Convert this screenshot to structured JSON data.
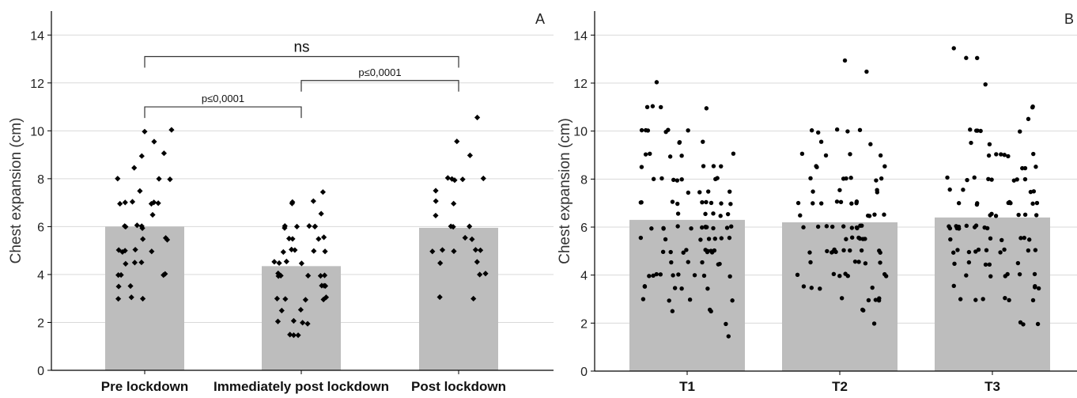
{
  "chart_data": [
    {
      "panel": "A",
      "type": "bar",
      "overlay": "scatter",
      "categories": [
        "Pre lockdown",
        "Immediately post lockdown",
        "Post lockdown"
      ],
      "values": [
        6.0,
        4.35,
        5.95
      ],
      "ylabel": "Chest expansion (cm)",
      "ylim": [
        0,
        15
      ],
      "yticks": [
        0,
        2,
        4,
        6,
        8,
        10,
        12,
        14
      ],
      "grid": "horizontal",
      "colors": {
        "bar": "#bdbdbd",
        "point": "#000000",
        "grid": "#d9d9d9",
        "axis": "#000000"
      },
      "points": [
        [
          10,
          10,
          9.5,
          9,
          9,
          8.5,
          8,
          8,
          8,
          7.5,
          7,
          7,
          7,
          7,
          7,
          7,
          6.5,
          6,
          6,
          6,
          6,
          6,
          5.5,
          5.5,
          5.5,
          5,
          5,
          5,
          5,
          5,
          4.5,
          4.5,
          4.5,
          4,
          4,
          4,
          4,
          3.5,
          3.5,
          3,
          3,
          3
        ],
        [
          7.5,
          7,
          7,
          7,
          6.5,
          6,
          6,
          6,
          6,
          6,
          6,
          5.5,
          5.5,
          5.5,
          5.5,
          5,
          5,
          5,
          5,
          5,
          4.5,
          4.5,
          4.5,
          4.5,
          4,
          4,
          4,
          4,
          4,
          4,
          3.5,
          3.5,
          3.5,
          3,
          3,
          3,
          3,
          3,
          2.5,
          2.5,
          2,
          2,
          2,
          2,
          1.5,
          1.5,
          1.5
        ],
        [
          10.5,
          9.5,
          9,
          8,
          8,
          8,
          8,
          8,
          7.5,
          7,
          7,
          6.5,
          6,
          6,
          6,
          5.5,
          5.5,
          5,
          5,
          5,
          5,
          5,
          4.5,
          4.5,
          4,
          4,
          3,
          3
        ]
      ],
      "significance": [
        {
          "from": 0,
          "to": 1,
          "label": "p≤0,0001",
          "level": 11.0
        },
        {
          "from": 1,
          "to": 2,
          "label": "p≤0,0001",
          "level": 12.1
        },
        {
          "from": 0,
          "to": 2,
          "label": "ns",
          "level": 13.1
        }
      ]
    },
    {
      "panel": "B",
      "type": "bar",
      "overlay": "scatter",
      "categories": [
        "T1",
        "T2",
        "T3"
      ],
      "values": [
        6.3,
        6.2,
        6.4
      ],
      "ylabel": "Chest expansion (cm)",
      "ylim": [
        0,
        15
      ],
      "yticks": [
        0,
        2,
        4,
        6,
        8,
        10,
        12,
        14
      ],
      "grid": "horizontal",
      "colors": {
        "bar": "#bdbdbd",
        "point": "#000000",
        "grid": "#d9d9d9",
        "axis": "#000000"
      },
      "points": [
        [
          12,
          11,
          11,
          11,
          11,
          10,
          10,
          10,
          10,
          10,
          10,
          9.5,
          9.5,
          9.5,
          9,
          9,
          9,
          9,
          9,
          8.5,
          8.5,
          8.5,
          8.5,
          8,
          8,
          8,
          8,
          8,
          8,
          8,
          7.5,
          7.5,
          7.5,
          7.5,
          7,
          7,
          7,
          7,
          7,
          7,
          7,
          7,
          7,
          6.5,
          6.5,
          6.5,
          6.5,
          6.5,
          6,
          6,
          6,
          6,
          6,
          6,
          6,
          6,
          6,
          6,
          6,
          6,
          5.5,
          5.5,
          5.5,
          5.5,
          5.5,
          5.5,
          5.5,
          5,
          5,
          5,
          5,
          5,
          5,
          5,
          5,
          5,
          5,
          4.5,
          4.5,
          4.5,
          4.5,
          4.5,
          4,
          4,
          4,
          4,
          4,
          4,
          4,
          4,
          4,
          3.5,
          3.5,
          3.5,
          3.5,
          3.5,
          3,
          3,
          3,
          3,
          2.5,
          2.5,
          2.5,
          2,
          1.5
        ],
        [
          13,
          12.5,
          10,
          10,
          10,
          10,
          10,
          9.5,
          9.5,
          9,
          9,
          9,
          9,
          8.5,
          8.5,
          8.5,
          8,
          8,
          8,
          8,
          8,
          8,
          7.5,
          7.5,
          7.5,
          7.5,
          7,
          7,
          7,
          7,
          7,
          7,
          7,
          7,
          6.5,
          6.5,
          6.5,
          6.5,
          6.5,
          6,
          6,
          6,
          6,
          6,
          6,
          6,
          6,
          6,
          6,
          5.5,
          5.5,
          5.5,
          5.5,
          5.5,
          5.5,
          5,
          5,
          5,
          5,
          5,
          5,
          5,
          5,
          5,
          5,
          5,
          4.5,
          4.5,
          4.5,
          4.5,
          4.5,
          4,
          4,
          4,
          4,
          4,
          4,
          4,
          3.5,
          3.5,
          3.5,
          3.5,
          3,
          3,
          3,
          3,
          3,
          2.5,
          2.5,
          2
        ],
        [
          13.5,
          13,
          13,
          12,
          11,
          11,
          10.5,
          10,
          10,
          10,
          10,
          10,
          9.5,
          9.5,
          9,
          9,
          9,
          9,
          9,
          9,
          8.5,
          8.5,
          8.5,
          8,
          8,
          8,
          8,
          8,
          8,
          8,
          8,
          7.5,
          7.5,
          7.5,
          7.5,
          7,
          7,
          7,
          7,
          7,
          7,
          7,
          7,
          6.5,
          6.5,
          6.5,
          6.5,
          6.5,
          6.5,
          6,
          6,
          6,
          6,
          6,
          6,
          6,
          6,
          6,
          6,
          6,
          5.5,
          5.5,
          5.5,
          5.5,
          5.5,
          5.5,
          5,
          5,
          5,
          5,
          5,
          5,
          5,
          5,
          5,
          5,
          4.5,
          4.5,
          4.5,
          4.5,
          4.5,
          4,
          4,
          4,
          4,
          4,
          4,
          3.5,
          3.5,
          3.5,
          3.5,
          3,
          3,
          3,
          3,
          3,
          3,
          2,
          2,
          2
        ]
      ]
    }
  ]
}
